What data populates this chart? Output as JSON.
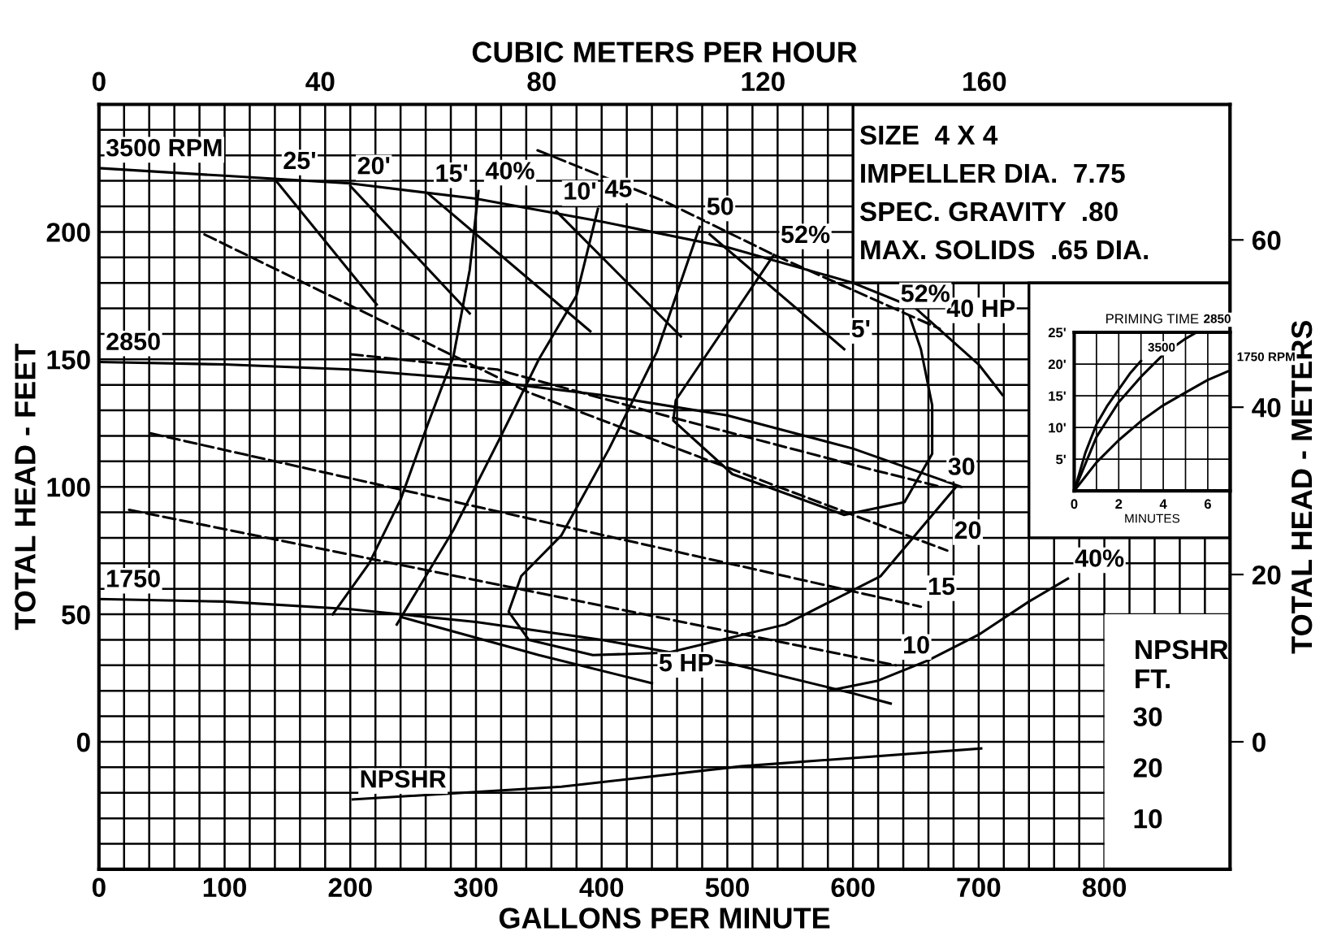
{
  "chart_data": [
    {
      "type": "line",
      "xlabel": "GALLONS PER MINUTE",
      "x2label": "CUBIC METERS PER HOUR",
      "ylabel": "TOTAL HEAD - FEET",
      "y2label": "TOTAL HEAD - METERS",
      "y3label": "NPSHR\nFT.",
      "xlim": [
        0,
        900
      ],
      "ylim": [
        -50,
        250
      ],
      "x2lim": [
        0,
        204.4
      ],
      "y2lim": [
        -15.24,
        76.2
      ],
      "y3lim": [
        0,
        150
      ],
      "xticks": [
        0,
        {
          "value": 20,
          "label": null
        },
        {
          "value": 40,
          "label": null
        },
        {
          "value": 60,
          "label": null
        },
        {
          "value": 80,
          "label": null
        },
        100,
        {
          "value": 120,
          "label": null
        },
        {
          "value": 140,
          "label": null
        },
        {
          "value": 160,
          "label": null
        },
        {
          "value": 180,
          "label": null
        },
        200,
        {
          "value": 220,
          "label": null
        },
        {
          "value": 240,
          "label": null
        },
        {
          "value": 260,
          "label": null
        },
        {
          "value": 280,
          "label": null
        },
        300,
        {
          "value": 320,
          "label": null
        },
        {
          "value": 340,
          "label": null
        },
        {
          "value": 360,
          "label": null
        },
        {
          "value": 380,
          "label": null
        },
        400,
        {
          "value": 420,
          "label": null
        },
        {
          "value": 440,
          "label": null
        },
        {
          "value": 460,
          "label": null
        },
        {
          "value": 480,
          "label": null
        },
        500,
        {
          "value": 520,
          "label": null
        },
        {
          "value": 540,
          "label": null
        },
        {
          "value": 560,
          "label": null
        },
        {
          "value": 580,
          "label": null
        },
        600,
        {
          "value": 620,
          "label": null
        },
        {
          "value": 640,
          "label": null
        },
        {
          "value": 660,
          "label": null
        },
        {
          "value": 680,
          "label": null
        },
        700,
        {
          "value": 720,
          "label": null
        },
        {
          "value": 740,
          "label": null
        },
        {
          "value": 760,
          "label": null
        },
        {
          "value": 780,
          "label": null
        },
        800,
        {
          "value": 820,
          "label": null
        },
        {
          "value": 840,
          "label": null
        },
        {
          "value": 860,
          "label": null
        },
        {
          "value": 880,
          "label": null
        },
        {
          "value": 900,
          "label": null
        }
      ],
      "yticks": [
        {
          "value": -50,
          "label": null
        },
        {
          "value": -40,
          "label": null
        },
        {
          "value": -30,
          "label": null
        },
        {
          "value": -20,
          "label": null
        },
        {
          "value": -10,
          "label": null
        },
        0,
        {
          "value": 10,
          "label": null
        },
        {
          "value": 20,
          "label": null
        },
        {
          "value": 30,
          "label": null
        },
        {
          "value": 40,
          "label": null
        },
        50,
        {
          "value": 60,
          "label": null
        },
        {
          "value": 70,
          "label": null
        },
        {
          "value": 80,
          "label": null
        },
        {
          "value": 90,
          "label": null
        },
        100,
        {
          "value": 110,
          "label": null
        },
        {
          "value": 120,
          "label": null
        },
        {
          "value": 130,
          "label": null
        },
        {
          "value": 140,
          "label": null
        },
        150,
        {
          "value": 160,
          "label": null
        },
        {
          "value": 170,
          "label": null
        },
        {
          "value": 180,
          "label": null
        },
        {
          "value": 190,
          "label": null
        },
        200,
        {
          "value": 210,
          "label": null
        },
        {
          "value": 220,
          "label": null
        },
        {
          "value": 230,
          "label": null
        },
        {
          "value": 240,
          "label": null
        },
        {
          "value": 250,
          "label": null
        }
      ],
      "x2ticks": [
        0,
        40,
        80,
        120,
        160
      ],
      "y2ticks": [
        0,
        20,
        40,
        60
      ],
      "y3ticks": [
        10,
        20,
        30
      ],
      "grid": true,
      "annotations": [
        "SIZE  4 X 4",
        "IMPELLER DIA.  7.75",
        "SPEC. GRAVITY  .80",
        "MAX. SOLIDS  .65 DIA.",
        {
          "text": "52%",
          "x": 645,
          "y": 167
        }
      ],
      "series": [
        {
          "name": "3500 RPM",
          "color": "#000000",
          "x": [
            719,
            700,
            650,
            600,
            500,
            400,
            300,
            200,
            100,
            0
          ],
          "values": [
            136,
            148,
            170,
            180,
            194,
            204,
            213,
            219,
            222,
            225
          ]
        },
        {
          "name": "2850",
          "color": "#000000",
          "x": [
            686,
            600,
            500,
            400,
            300,
            200,
            100,
            0
          ],
          "values": [
            100,
            115,
            128,
            136,
            142,
            146,
            148,
            149
          ]
        },
        {
          "name": "1750",
          "color": "#000000",
          "x": [
            630,
            600,
            500,
            400,
            300,
            200,
            100,
            0
          ],
          "values": [
            15,
            19,
            31,
            40,
            47,
            52,
            55,
            56
          ]
        },
        {
          "name": "NPSHR",
          "color": "#000000",
          "axis": "y3",
          "x": [
            702,
            511,
            368,
            202
          ],
          "values": [
            23.7,
            20.2,
            16.2,
            13.7
          ]
        },
        {
          "name": "40%",
          "color": "#000000",
          "x": [
            186,
            215,
            240,
            262,
            282,
            295,
            302
          ],
          "values": [
            50,
            70,
            95,
            125,
            151,
            185,
            216
          ]
        },
        {
          "name": "45",
          "color": "#000000",
          "x": [
            237,
            282,
            320,
            350,
            380,
            397
          ],
          "values": [
            46,
            83,
            120,
            150,
            175,
            209
          ]
        },
        {
          "name": "50",
          "color": "#000000",
          "x": [
            682,
            622,
            546,
            453,
            393,
            342,
            326,
            336,
            368,
            406,
            444,
            478
          ],
          "values": [
            100,
            65,
            46,
            35,
            34,
            40,
            51,
            65,
            81,
            115,
            153,
            202
          ]
        },
        {
          "name": "52%",
          "color": "#000000",
          "x": [
            645,
            654,
            663,
            663,
            641,
            593,
            504,
            457,
            459,
            537
          ],
          "values": [
            167,
            154,
            132,
            113,
            94,
            89,
            105,
            126,
            134,
            191
          ]
        },
        {
          "name": "40%",
          "color": "#000000",
          "x": [
            580,
            620,
            660,
            700,
            740,
            771
          ],
          "values": [
            20,
            24,
            32,
            42,
            55,
            64
          ]
        },
        {
          "name": "40 HP",
          "color": "#000000",
          "line_style": "dashed",
          "x": [
            349,
            450,
            537,
            669
          ],
          "values": [
            232,
            212,
            191,
            162
          ]
        },
        {
          "name": "30",
          "color": "#000000",
          "line_style": "dashed",
          "x": [
            200,
            317,
            450,
            613,
            670
          ],
          "values": [
            152,
            146,
            128,
            107,
            100
          ]
        },
        {
          "name": "20",
          "color": "#000000",
          "line_style": "dashed",
          "x": [
            84,
            342,
            675
          ],
          "values": [
            199,
            137,
            75
          ]
        },
        {
          "name": "15",
          "color": "#000000",
          "line_style": "dashed",
          "x": [
            41,
            654
          ],
          "values": [
            121,
            53
          ]
        },
        {
          "name": "10",
          "color": "#000000",
          "line_style": "dashed",
          "x": [
            24,
            634
          ],
          "values": [
            91,
            30
          ]
        },
        {
          "name": "5 HP",
          "color": "#000000",
          "x": [
            240,
            350,
            440
          ],
          "values": [
            49,
            34,
            23
          ]
        },
        {
          "name": "25'",
          "color": "#000000",
          "x": [
            221,
            141
          ],
          "values": [
            171.5,
            220
          ]
        },
        {
          "name": "20'",
          "color": "#000000",
          "x": [
            295,
            200
          ],
          "values": [
            168,
            218
          ]
        },
        {
          "name": "15'",
          "color": "#000000",
          "x": [
            391,
            262
          ],
          "values": [
            161,
            215
          ]
        },
        {
          "name": "10'",
          "color": "#000000",
          "x": [
            463,
            364
          ],
          "values": [
            159,
            208
          ]
        },
        {
          "name": "5'",
          "color": "#000000",
          "x": [
            486,
            593
          ],
          "values": [
            199,
            154
          ]
        }
      ]
    },
    {
      "type": "line",
      "title": "PRIMING TIME",
      "xlabel": "MINUTES",
      "xlim": [
        0,
        7
      ],
      "ylim": [
        0,
        25
      ],
      "xticks": [
        0,
        {
          "value": 1,
          "label": null
        },
        2,
        {
          "value": 3,
          "label": null
        },
        4,
        {
          "value": 5,
          "label": null
        },
        6,
        {
          "value": 7,
          "label": null
        }
      ],
      "yticks": [
        {
          "value": 0,
          "label": null
        },
        {
          "value": 5,
          "label": "5'"
        },
        {
          "value": 10,
          "label": "10'"
        },
        {
          "value": 15,
          "label": "15'"
        },
        {
          "value": 20,
          "label": "20'"
        },
        {
          "value": 25,
          "label": "25'"
        }
      ],
      "grid": true,
      "series": [
        {
          "name": "3500",
          "color": "#000000",
          "x": [
            0,
            0.5,
            1,
            1.5,
            2,
            2.5,
            3
          ],
          "values": [
            0,
            6,
            10.5,
            13.5,
            16,
            18.5,
            20.5
          ]
        },
        {
          "name": "2850",
          "color": "#000000",
          "x": [
            0,
            1,
            2,
            3,
            4,
            5,
            5.5
          ],
          "values": [
            0,
            8.5,
            14,
            18,
            21.5,
            24,
            25
          ]
        },
        {
          "name": "1750 RPM",
          "color": "#000000",
          "x": [
            0,
            1,
            2,
            3,
            4,
            5,
            6,
            7
          ],
          "values": [
            0,
            4.5,
            8,
            11,
            13.5,
            15.5,
            17.5,
            19
          ]
        }
      ]
    }
  ]
}
